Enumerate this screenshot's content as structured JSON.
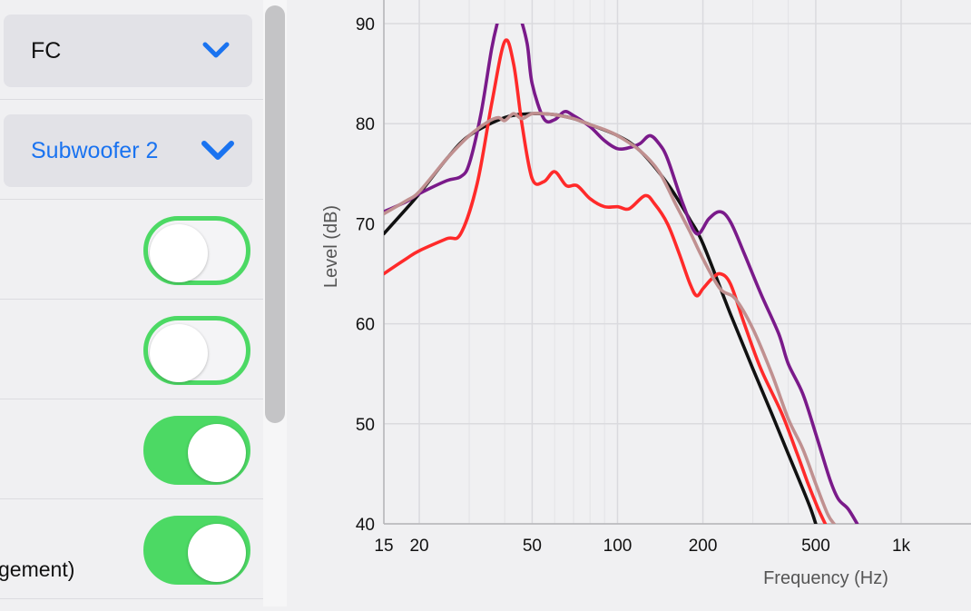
{
  "sidebar": {
    "channel_select": {
      "value": "FC"
    },
    "sub_select": {
      "value": "Subwoofer 2"
    },
    "toggles": [
      {
        "on": false,
        "label": ""
      },
      {
        "on": false,
        "label": ""
      },
      {
        "on": true,
        "label": ""
      },
      {
        "on": true,
        "label": "gement)"
      }
    ]
  },
  "colors": {
    "accent_blue": "#1a73f0",
    "toggle_green": "#4cd964"
  },
  "chart_data": {
    "type": "line",
    "xlabel": "Frequency (Hz)",
    "ylabel": "Level (dB)",
    "xscale": "log",
    "xlim": [
      15,
      1300
    ],
    "ylim": [
      40,
      90
    ],
    "x_ticks": [
      15,
      20,
      50,
      100,
      200,
      500,
      1000
    ],
    "x_tick_labels": [
      "15",
      "20",
      "50",
      "100",
      "200",
      "500",
      "1k"
    ],
    "y_ticks": [
      40,
      50,
      60,
      70,
      80,
      90
    ],
    "y_tick_labels": [
      "40",
      "50",
      "60",
      "70",
      "80",
      "90"
    ],
    "grid": true,
    "series": [
      {
        "color": "#111111",
        "points": [
          [
            15,
            69
          ],
          [
            18,
            71.5
          ],
          [
            20,
            73
          ],
          [
            25,
            76.5
          ],
          [
            30,
            78.8
          ],
          [
            40,
            80.6
          ],
          [
            50,
            81
          ],
          [
            60,
            80.9
          ],
          [
            70,
            80.5
          ],
          [
            80,
            79.9
          ],
          [
            100,
            78.8
          ],
          [
            120,
            77.3
          ],
          [
            150,
            74
          ],
          [
            180,
            70.4
          ],
          [
            200,
            68
          ],
          [
            250,
            61
          ],
          [
            300,
            55.5
          ],
          [
            350,
            51
          ],
          [
            400,
            47
          ],
          [
            450,
            43.5
          ],
          [
            480,
            41.5
          ],
          [
            500,
            40
          ]
        ]
      },
      {
        "color": "#ff2a2a",
        "points": [
          [
            15,
            65
          ],
          [
            18,
            66.5
          ],
          [
            20,
            67.3
          ],
          [
            25,
            68.5
          ],
          [
            28,
            69
          ],
          [
            32,
            74
          ],
          [
            36,
            82
          ],
          [
            40,
            88.2
          ],
          [
            43,
            86
          ],
          [
            46,
            80
          ],
          [
            50,
            74.5
          ],
          [
            55,
            74.2
          ],
          [
            60,
            75.2
          ],
          [
            66,
            73.8
          ],
          [
            72,
            73.8
          ],
          [
            80,
            72.5
          ],
          [
            90,
            71.7
          ],
          [
            100,
            71.7
          ],
          [
            110,
            71.5
          ],
          [
            125,
            72.8
          ],
          [
            135,
            72
          ],
          [
            150,
            70
          ],
          [
            165,
            67
          ],
          [
            180,
            64
          ],
          [
            190,
            62.8
          ],
          [
            200,
            63.5
          ],
          [
            215,
            64.5
          ],
          [
            230,
            65
          ],
          [
            250,
            64
          ],
          [
            280,
            60
          ],
          [
            320,
            55.5
          ],
          [
            380,
            51
          ],
          [
            430,
            47
          ],
          [
            470,
            44
          ],
          [
            510,
            41.5
          ],
          [
            540,
            40
          ]
        ]
      },
      {
        "color": "#7a1a8a",
        "points": [
          [
            15,
            71.2
          ],
          [
            18,
            72.2
          ],
          [
            20,
            73
          ],
          [
            25,
            74.3
          ],
          [
            28,
            74.7
          ],
          [
            30,
            76
          ],
          [
            33,
            81
          ],
          [
            36,
            87.5
          ],
          [
            38,
            90.5
          ],
          [
            40,
            93
          ],
          [
            42,
            93
          ],
          [
            45,
            91
          ],
          [
            48,
            88
          ],
          [
            50,
            84
          ],
          [
            55,
            80.5
          ],
          [
            60,
            80.4
          ],
          [
            65,
            81.2
          ],
          [
            70,
            80.8
          ],
          [
            80,
            79.7
          ],
          [
            90,
            78.3
          ],
          [
            100,
            77.5
          ],
          [
            110,
            77.6
          ],
          [
            120,
            78
          ],
          [
            130,
            78.8
          ],
          [
            140,
            78
          ],
          [
            150,
            76.5
          ],
          [
            170,
            72
          ],
          [
            190,
            69
          ],
          [
            210,
            70.5
          ],
          [
            230,
            71.2
          ],
          [
            250,
            70.2
          ],
          [
            280,
            67
          ],
          [
            320,
            63
          ],
          [
            370,
            59
          ],
          [
            400,
            56
          ],
          [
            450,
            53
          ],
          [
            500,
            49
          ],
          [
            560,
            44.5
          ],
          [
            600,
            42.5
          ],
          [
            650,
            41.5
          ],
          [
            700,
            40
          ]
        ]
      },
      {
        "color": "#c09090",
        "points": [
          [
            15,
            71
          ],
          [
            18,
            72.3
          ],
          [
            20,
            73.2
          ],
          [
            25,
            76.5
          ],
          [
            30,
            78.8
          ],
          [
            35,
            80.2
          ],
          [
            38,
            80.6
          ],
          [
            40,
            80.3
          ],
          [
            43,
            81
          ],
          [
            46,
            80.5
          ],
          [
            50,
            81
          ],
          [
            55,
            81
          ],
          [
            60,
            80.9
          ],
          [
            70,
            80.5
          ],
          [
            80,
            79.9
          ],
          [
            90,
            79.4
          ],
          [
            100,
            78.8
          ],
          [
            120,
            77.3
          ],
          [
            140,
            75.2
          ],
          [
            160,
            72
          ],
          [
            180,
            69.2
          ],
          [
            200,
            66.5
          ],
          [
            230,
            63.5
          ],
          [
            260,
            62.5
          ],
          [
            300,
            59.5
          ],
          [
            350,
            55
          ],
          [
            400,
            50.5
          ],
          [
            450,
            47.5
          ],
          [
            500,
            44
          ],
          [
            550,
            41
          ],
          [
            580,
            40
          ]
        ]
      }
    ]
  }
}
